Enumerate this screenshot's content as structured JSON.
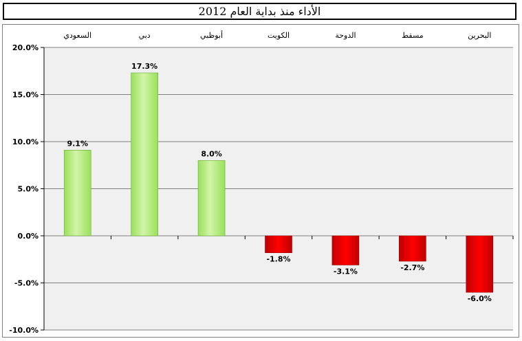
{
  "chart_data": {
    "type": "bar",
    "title": "الأداء منذ بداية العام 2012",
    "categories": [
      "السعودي",
      "دبي",
      "أبوظبي",
      "الكويت",
      "الدوحة",
      "مسقط",
      "البحرين"
    ],
    "values": [
      9.1,
      17.3,
      8.0,
      -1.8,
      -3.1,
      -2.7,
      -6.0
    ],
    "data_labels": [
      "9.1%",
      "17.3%",
      "8.0%",
      "-1.8%",
      "-3.1%",
      "-2.7%",
      "-6.0%"
    ],
    "ylim": [
      -10,
      20
    ],
    "yticks": [
      20,
      15,
      10,
      5,
      0,
      -5,
      -10
    ],
    "ytick_labels": [
      "20.0%",
      "15.0%",
      "10.0%",
      "5.0%",
      "0.0%",
      "-5.0%",
      "-10.0%"
    ],
    "grid": true,
    "category_axis_position": "top",
    "xlabel": "",
    "ylabel": "",
    "colors": {
      "positive": "#99e05a",
      "positive_light": "#d2f5a8",
      "negative": "#ff0000",
      "negative_dark": "#c00000",
      "plot_background": "#f0f0f0",
      "gridline": "#808080"
    }
  }
}
